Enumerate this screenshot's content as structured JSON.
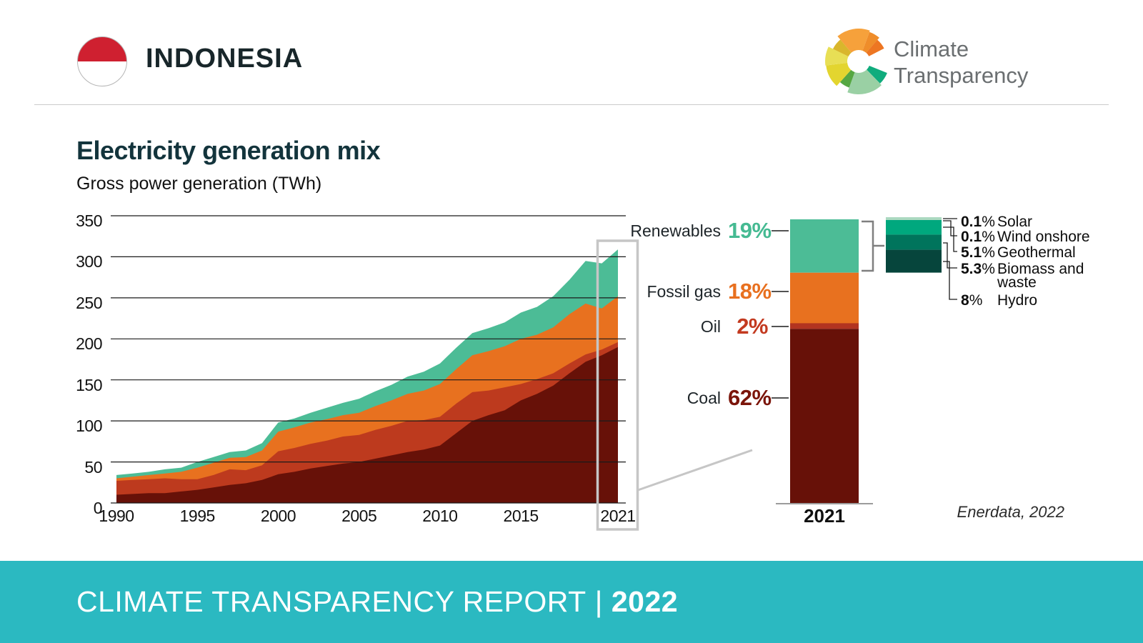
{
  "header": {
    "country": "INDONESIA",
    "logo_line1": "Climate",
    "logo_line2": "Transparency"
  },
  "title": "Electricity generation mix",
  "subtitle": "Gross power generation (TWh)",
  "source": "Enerdata, 2022",
  "footer": {
    "report_title": "CLIMATE TRANSPARENCY REPORT",
    "separator": "|",
    "year": "2022"
  },
  "chart_data": {
    "type": "area",
    "stacked": true,
    "title": "Electricity generation mix",
    "ylabel": "Gross power generation (TWh)",
    "grid": true,
    "ylim": [
      0,
      350
    ],
    "yticks": [
      0,
      50,
      100,
      150,
      200,
      250,
      300,
      350
    ],
    "xticks": [
      1990,
      1995,
      2000,
      2005,
      2010,
      2015,
      2021
    ],
    "highlight_year": 2021,
    "x": [
      1990,
      1991,
      1992,
      1993,
      1994,
      1995,
      1996,
      1997,
      1998,
      1999,
      2000,
      2001,
      2002,
      2003,
      2004,
      2005,
      2006,
      2007,
      2008,
      2009,
      2010,
      2011,
      2012,
      2013,
      2014,
      2015,
      2016,
      2017,
      2018,
      2019,
      2020,
      2021
    ],
    "series": [
      {
        "name": "Coal",
        "color": "#671108",
        "values": [
          10,
          11,
          12,
          12,
          14,
          16,
          19,
          22,
          24,
          28,
          35,
          38,
          42,
          45,
          48,
          50,
          54,
          58,
          62,
          65,
          70,
          85,
          100,
          107,
          113,
          125,
          133,
          143,
          158,
          172,
          180,
          190
        ]
      },
      {
        "name": "Oil",
        "color": "#bd3a1e",
        "values": [
          17,
          17,
          17,
          18,
          15,
          13,
          15,
          19,
          16,
          18,
          28,
          29,
          30,
          31,
          33,
          33,
          35,
          36,
          38,
          36,
          35,
          36,
          35,
          30,
          28,
          20,
          18,
          15,
          12,
          9,
          7,
          6
        ]
      },
      {
        "name": "Fossil gas",
        "color": "#e8711f",
        "values": [
          3,
          4,
          5,
          6,
          9,
          14,
          15,
          14,
          16,
          18,
          24,
          25,
          26,
          26,
          26,
          27,
          29,
          31,
          33,
          36,
          40,
          42,
          45,
          48,
          50,
          55,
          54,
          56,
          60,
          62,
          50,
          56
        ]
      },
      {
        "name": "Renewables",
        "color": "#4cbc96",
        "values": [
          4,
          4,
          4,
          5,
          5,
          7,
          7,
          7,
          8,
          9,
          11,
          11,
          12,
          14,
          15,
          17,
          18,
          19,
          21,
          23,
          25,
          26,
          27,
          28,
          29,
          32,
          34,
          38,
          42,
          52,
          55,
          57
        ]
      }
    ]
  },
  "bar_2021": {
    "year_label": "2021",
    "segments": [
      {
        "label": "Renewables",
        "pct": 19,
        "pct_label": "19%",
        "color": "#4cbc96"
      },
      {
        "label": "Fossil gas",
        "pct": 18,
        "pct_label": "18%",
        "color": "#e8711f"
      },
      {
        "label": "Oil",
        "pct": 2,
        "pct_label": "2%",
        "color": "#b23420"
      },
      {
        "label": "Coal",
        "pct": 62,
        "pct_label": "62%",
        "color": "#671108"
      }
    ]
  },
  "renewables_breakdown": {
    "items": [
      {
        "pct": "0.1",
        "sign": "%",
        "label": "Solar",
        "color": "#abd9c0"
      },
      {
        "pct": "0.1",
        "sign": "%",
        "label": "Wind onshore",
        "color": "#abd9c0"
      },
      {
        "pct": "5.1",
        "sign": "%",
        "label": "Geothermal",
        "color": "#00a87e"
      },
      {
        "pct": "5.3",
        "sign": "%",
        "label": "Biomass and waste",
        "color": "#00745c"
      },
      {
        "pct": "8",
        "sign": "%",
        "label": "Hydro",
        "color": "#06453c"
      }
    ]
  }
}
